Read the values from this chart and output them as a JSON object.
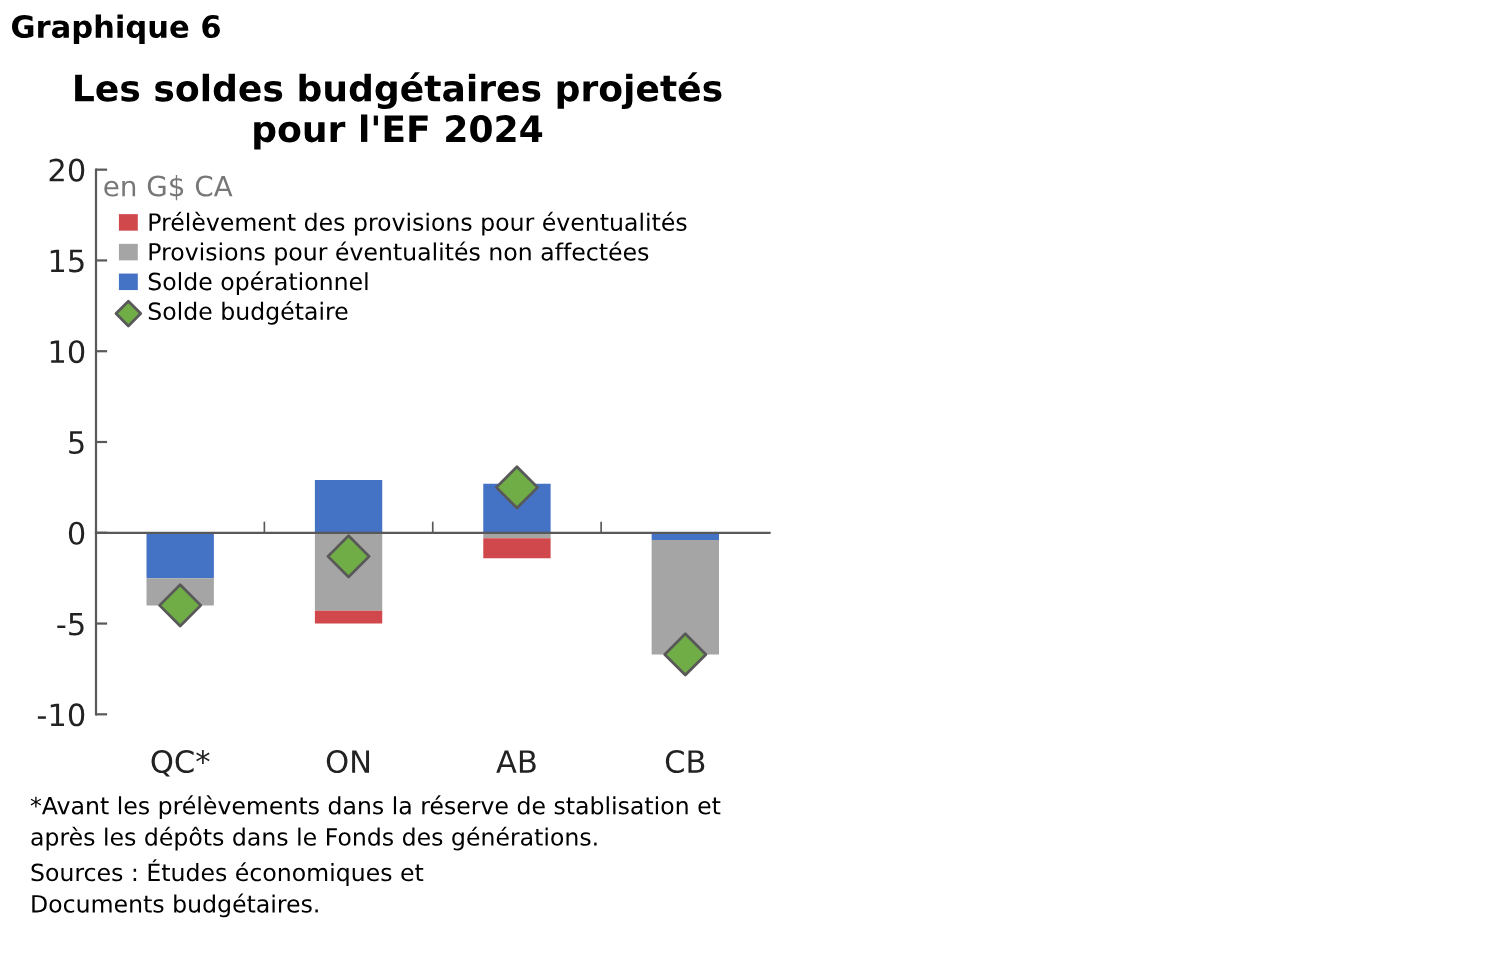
{
  "chart_data": {
    "type": "bar",
    "stacked": true,
    "title": "Les soldes budgétaires projetés\npour l'EF 2024",
    "ylabel": "en G$ CA",
    "categories": [
      "QC*",
      "ON",
      "AB",
      "CB"
    ],
    "series": [
      {
        "name": "Solde opérationnel",
        "color": "#4472c4",
        "values": [
          -2.5,
          2.9,
          2.7,
          -0.4
        ]
      },
      {
        "name": "Provisions pour éventualités non affectées",
        "color": "#a5a5a5",
        "values": [
          -1.5,
          -4.3,
          -0.3,
          -6.3
        ]
      },
      {
        "name": "Prélèvement des provisions pour éventualités",
        "color": "#d0484b",
        "values": [
          null,
          -0.7,
          -1.1,
          null
        ]
      },
      {
        "name": "Solde budgétaire",
        "type": "scatter",
        "color": "#70ad47",
        "values": [
          -4.0,
          -1.3,
          2.5,
          -6.7
        ]
      }
    ],
    "ylim": [
      -10,
      20
    ],
    "yticks": [
      -10,
      -5,
      0,
      5,
      10,
      15,
      20
    ],
    "legend": "top left",
    "marker": "diamond",
    "annotations": [
      "Graphique 6",
      "*Avant les prélèvements dans la réserve de stablisation et\naprès les dépôts dans le Fonds des générations.\nSources : Études économiques et\nDocuments budgétaires."
    ]
  }
}
